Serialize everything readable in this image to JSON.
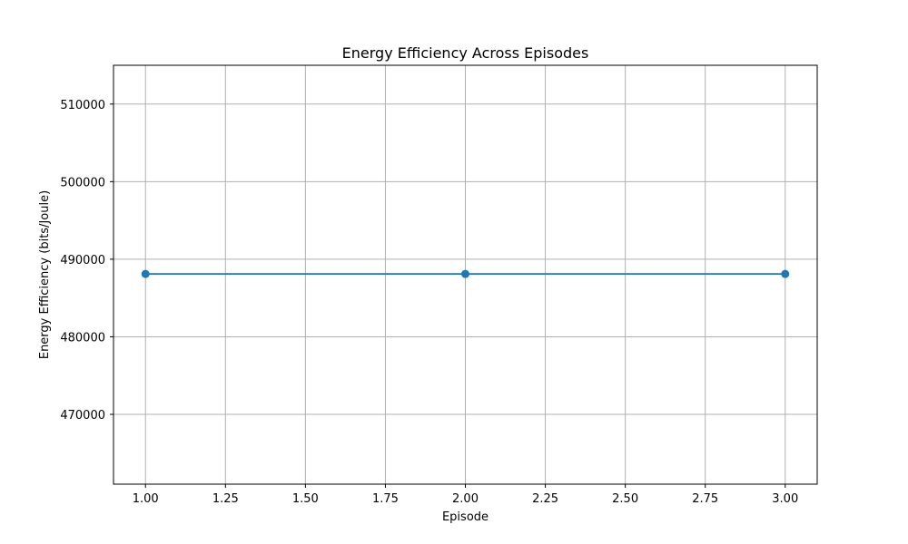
{
  "chart_data": {
    "type": "line",
    "title": "Energy Efficiency Across Episodes",
    "xlabel": "Episode",
    "ylabel": "Energy Efficiency (bits/Joule)",
    "xlim": [
      0.9,
      3.1
    ],
    "ylim": [
      461000,
      515000
    ],
    "xticks": [
      1.0,
      1.25,
      1.5,
      1.75,
      2.0,
      2.25,
      2.5,
      2.75,
      3.0
    ],
    "xtick_labels": [
      "1.00",
      "1.25",
      "1.50",
      "1.75",
      "2.00",
      "2.25",
      "2.50",
      "2.75",
      "3.00"
    ],
    "yticks": [
      470000,
      480000,
      490000,
      500000,
      510000
    ],
    "ytick_labels": [
      "470000",
      "480000",
      "490000",
      "500000",
      "510000"
    ],
    "grid": true,
    "series": [
      {
        "x": [
          1,
          2,
          3
        ],
        "values": [
          488100,
          488100,
          488100
        ],
        "color": "#1f77b4",
        "marker": "circle"
      }
    ]
  }
}
